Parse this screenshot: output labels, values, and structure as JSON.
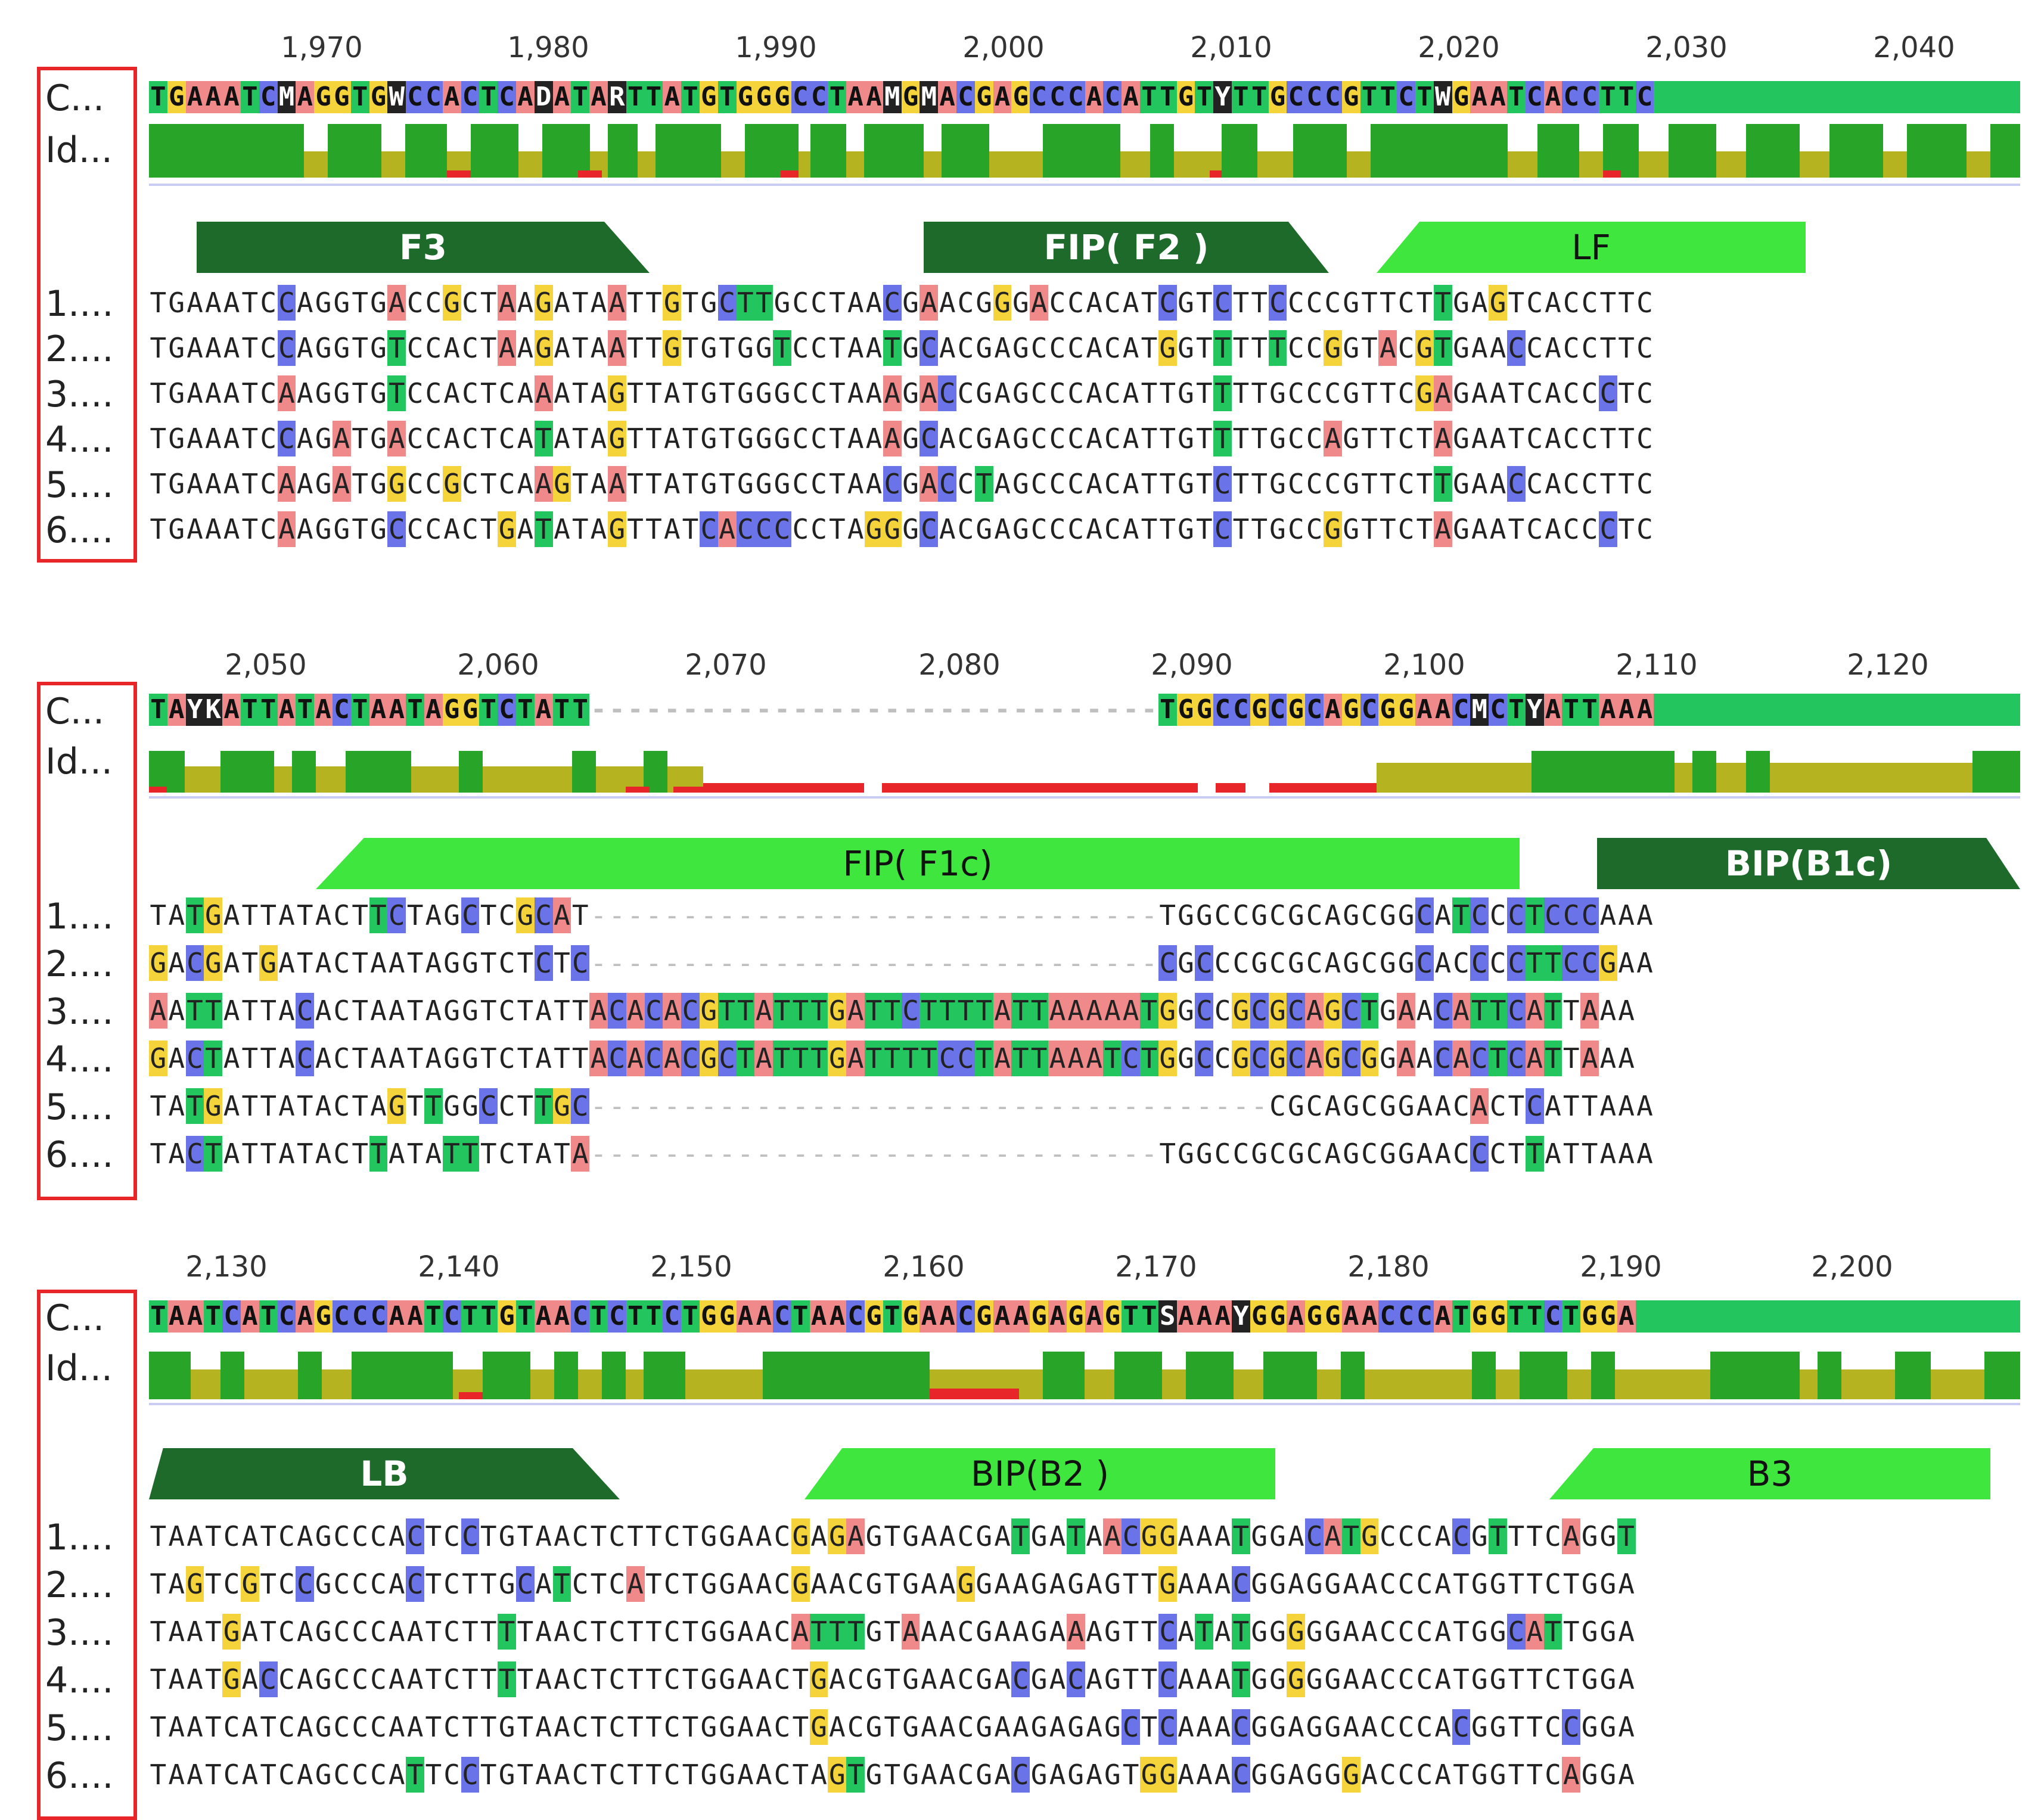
{
  "row_labels": [
    "C...",
    "Id...",
    "1....",
    "2....",
    "3....",
    "4....",
    "5....",
    "6...."
  ],
  "colors": {
    "A": "#f08a8a",
    "C": "#6b73e8",
    "G": "#f4d43a",
    "T": "#22c55e",
    "frame": "#e8262a"
  },
  "panels": [
    {
      "ruler": [
        "1,970",
        "1,980",
        "1,990",
        "2,000",
        "2,010",
        "2,020",
        "2,030",
        "2,040"
      ],
      "consensus": "TGAAATCMAGGTGWCCACTCADATARTTATGTGGGCCTAAMGMACGAGCCCACATTGTYTTGCCCGTTCTWGAATCACCTTC",
      "annotations": [
        {
          "label": "F3",
          "style": "dark"
        },
        {
          "label": "FIP( F2 )",
          "style": "dark"
        },
        {
          "label": "LF",
          "style": "light"
        }
      ],
      "sequences": [
        "TGAAATCCAGGTGACCGCTAAGATAATTGTGCTTGCCTAACGAACGGGACCACATCGTCTTCCCCGTTCTTGAGTCACCTTC",
        "TGAAATCCAGGTGTCCACTAAGATAATTGTGTGGTCCTAATGCACGAGCCCACATGGTTTTTCCGGTACGTGAACCACCTTC",
        "TGAAATCAAGGTGTCCACTCAAATAGTTATGTGGGCCTAAAGACCGAGCCCACATTGTTTTGCCCGTTCGAGAATCACCCTC",
        "TGAAATCCAGATGACCACTCATATAGTTATGTGGGCCTAAAGCACGAGCCCACATTGTTTTGCCAGTTCTAGAATCACCTTC",
        "TGAAATCAAGATGGCCGCTCAAGTAATTATGTGGGCCTAACGACCTAGCCCACATTGTCTTGCCCGTTCTTGAACCACCTTC",
        "TGAAATCAAGGTGCCCACTGATATAGTTATCACCCCCTAGGGCACGAGCCCACATTGTCTTGCCGGTTCTAGAATCACCCTC"
      ]
    },
    {
      "ruler": [
        "2,050",
        "2,060",
        "2,070",
        "2,080",
        "2,090",
        "2,100",
        "2,110",
        "2,120"
      ],
      "consensus": "TAYKATTATACTAATAGGTCTATT-------------------------------TGGCCGCGCAGCGGAACMCTYATTAAA",
      "annotations": [
        {
          "label": "FIP( F1c)",
          "style": "light"
        },
        {
          "label": "BIP(B1c)",
          "style": "dark"
        }
      ],
      "sequences": [
        "TATGATTATACTTCTAGCTCGCAT-------------------------------TGGCCGCGCAGCGGCATCCCTCCCAAA",
        "GACGATGATACTAATAGGTCTCTC-------------------------------CGCCCGCGCAGCGGCACCCCTTCCGAA",
        "AATTATTACACTAATAGGTCTATTACACACGTTATTTGATTCTTTTATTAAAAATGGCCGCGCAGCTGAACATTCATTAAA",
        "GACTATTACACTAATAGGTCTATTACACACGCTATTTGATTTTCCTATTAAATCTGGCCGCGCAGCGGAACACTCATTAAA",
        "TATGATTATACTAGTTGGCCTTGC-------------------------------------CGCAGCGGAACACTCATTAAA",
        "TACTATTATACTTATATTTCTATA-------------------------------TGGCCGCGCAGCGGAACCCTTATTAAA"
      ]
    },
    {
      "ruler": [
        "2,130",
        "2,140",
        "2,150",
        "2,160",
        "2,170",
        "2,180",
        "2,190",
        "2,200"
      ],
      "consensus": "TAATCATCAGCCCAATCTTGTAACTCTTCTGGAACTAACGTGAACGAAGAGAGTTSAAAYGGAGGAACCCATGGTTCTGGA",
      "annotations": [
        {
          "label": "LB",
          "style": "dark"
        },
        {
          "label": "BIP(B2 )",
          "style": "light"
        },
        {
          "label": "B3",
          "style": "light"
        }
      ],
      "sequences": [
        "TAATCATCAGCCCACTCCTGTAACTCTTCTGGAACGAGAGTGAACGATGATAACGGAAATGGACATGCCCACGTTTCAGGT",
        "TAGTCGTCCGCCCACTCTTGCATCTCATCTGGAACGAACGTGAAGGAAGAGAGTTGAAACGGAGGAACCCATGGTTCTGGA",
        "TAATGATCAGCCCAATCTTTTAACTCTTCTGGAACATTTGTAAACGAAGAAAGTTCATATGGGGGAACCCATGGCATTGGA",
        "TAATGACCAGCCCAATCTTTTAACTCTTCTGGAACTGACGTGAACGACGACAGTTCAAATGGGGGAACCCATGGTTCTGGA",
        "TAATCATCAGCCCAATCTTGTAACTCTTCTGGAACTGACGTGAACGAAGAGAGCTCAAACGGAGGAACCCACGGTTCCGGA",
        "TAATCATCAGCCCATTCCTGTAACTCTTCTGGAACTAGTGTGAACGACGAGAGTGGAAACGGAGGGACCCATGGTTCAGGA"
      ]
    }
  ]
}
